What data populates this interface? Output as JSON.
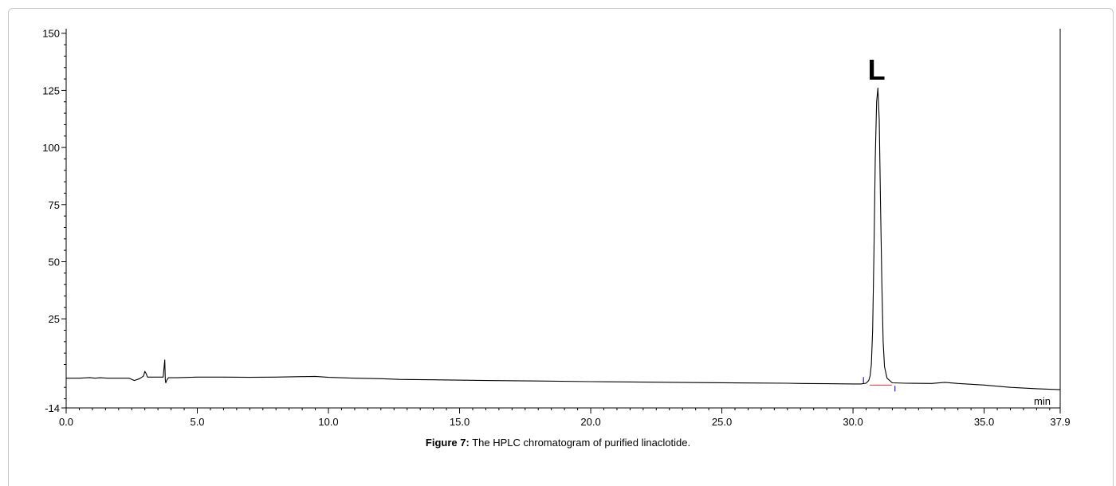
{
  "caption": {
    "label": "Figure 7:",
    "text": " The HPLC chromatogram of purified linaclotide."
  },
  "chart_data": {
    "type": "line",
    "title": "",
    "xlabel": "",
    "ylabel": "",
    "x_unit": "min",
    "xlim": [
      0.0,
      37.9
    ],
    "ylim": [
      -14,
      152
    ],
    "grid": false,
    "x_ticks": [
      "0.0",
      "5.0",
      "10.0",
      "15.0",
      "20.0",
      "25.0",
      "30.0",
      "35.0",
      "37.9"
    ],
    "x_tick_values": [
      0,
      5,
      10,
      15,
      20,
      25,
      30,
      35,
      37.9
    ],
    "y_ticks": [
      "150",
      "125",
      "100",
      "75",
      "50",
      "25",
      "-14"
    ],
    "y_tick_values": [
      150,
      125,
      100,
      75,
      50,
      25,
      -14
    ],
    "annotations": [
      {
        "text": "L",
        "x": 30.9,
        "y": 128
      }
    ],
    "integration": {
      "peak_start": 30.4,
      "peak_end": 31.6,
      "baseline_y": -4,
      "baseline_color": "#e03030",
      "marker_color": "#2020c0"
    },
    "series": [
      {
        "color": "#000000",
        "x": [
          0.0,
          0.5,
          0.9,
          1.1,
          1.3,
          1.6,
          2.0,
          2.4,
          2.6,
          2.8,
          2.95,
          3.0,
          3.05,
          3.1,
          3.2,
          3.4,
          3.6,
          3.7,
          3.76,
          3.78,
          3.8,
          3.83,
          3.9,
          4.2,
          5.0,
          6.0,
          7.0,
          8.0,
          9.0,
          9.5,
          10.0,
          11.0,
          12.0,
          12.7,
          14.0,
          16.0,
          18.0,
          20.0,
          22.0,
          24.0,
          26.0,
          27.5,
          28.0,
          29.0,
          30.0,
          30.3,
          30.5,
          30.6,
          30.65,
          30.7,
          30.75,
          30.8,
          30.85,
          30.9,
          30.95,
          31.0,
          31.05,
          31.1,
          31.15,
          31.2,
          31.3,
          31.5,
          32.0,
          33.0,
          33.5,
          34.0,
          35.0,
          36.0,
          37.0,
          37.9
        ],
        "y": [
          -1.0,
          -1.0,
          -0.7,
          -1.0,
          -0.8,
          -1.0,
          -1.0,
          -1.0,
          -2.0,
          -1.2,
          0.0,
          2.0,
          1.0,
          -0.5,
          -0.5,
          -0.5,
          -0.5,
          -0.5,
          7.0,
          -2.0,
          -3.0,
          -2.0,
          -0.8,
          -0.8,
          -0.5,
          -0.5,
          -0.6,
          -0.5,
          -0.3,
          -0.2,
          -0.6,
          -1.0,
          -1.2,
          -1.5,
          -1.7,
          -2.0,
          -2.2,
          -2.5,
          -2.7,
          -2.9,
          -3.1,
          -3.2,
          -3.3,
          -3.4,
          -3.5,
          -3.5,
          -3.2,
          -2.0,
          0.0,
          5.0,
          20.0,
          55.0,
          95.0,
          120.0,
          126.0,
          112.0,
          75.0,
          40.0,
          15.0,
          4.0,
          -1.0,
          -3.0,
          -3.2,
          -3.3,
          -2.8,
          -3.3,
          -4.0,
          -5.0,
          -5.6,
          -6.0
        ]
      }
    ]
  }
}
